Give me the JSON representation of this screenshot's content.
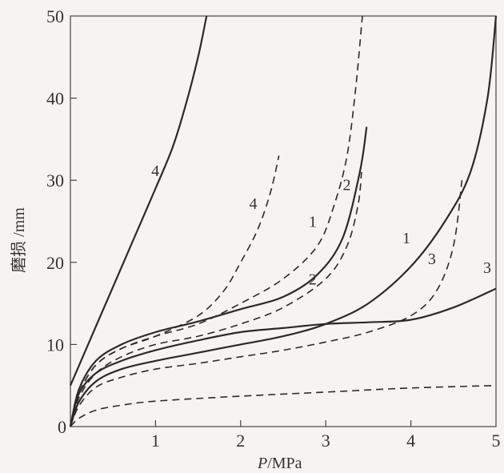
{
  "chart_data": {
    "type": "line",
    "xlabel_italic": "P",
    "xlabel_rest": "/MPa",
    "ylabel": "磨损 /mm",
    "xlim": [
      0,
      5
    ],
    "ylim": [
      0,
      50
    ],
    "x_ticks": [
      "0",
      "1",
      "2",
      "3",
      "4",
      "5"
    ],
    "y_ticks": [
      "10",
      "20",
      "30",
      "40",
      "50"
    ],
    "grid": false,
    "series": [
      {
        "name": "4",
        "style": "solid",
        "x": [
          0,
          0.25,
          0.5,
          0.75,
          1.0,
          1.2,
          1.35,
          1.5,
          1.6
        ],
        "y": [
          5,
          11,
          17,
          23,
          29,
          34,
          39,
          45,
          50
        ]
      },
      {
        "name": "4",
        "style": "dashed",
        "x": [
          0,
          0.1,
          0.3,
          0.6,
          1.0,
          1.5,
          1.8,
          2.0,
          2.2,
          2.35,
          2.45
        ],
        "y": [
          0,
          4,
          7.5,
          9.5,
          11,
          13.5,
          16.5,
          20,
          24,
          28.5,
          33
        ]
      },
      {
        "name": "1",
        "style": "dashed",
        "x": [
          0,
          0.1,
          0.3,
          0.6,
          1.0,
          1.5,
          2.0,
          2.5,
          2.9,
          3.1,
          3.25,
          3.35,
          3.43
        ],
        "y": [
          0,
          4,
          7.5,
          9.5,
          11,
          12.5,
          15,
          18,
          22,
          27,
          33,
          41,
          50
        ]
      },
      {
        "name": "2",
        "style": "solid",
        "x": [
          0,
          0.1,
          0.3,
          0.6,
          1.0,
          1.5,
          2.0,
          2.5,
          2.9,
          3.2,
          3.4,
          3.48
        ],
        "y": [
          0,
          4.5,
          8,
          10,
          11.5,
          12.8,
          14.3,
          15.8,
          18.5,
          23,
          31,
          36.5
        ]
      },
      {
        "name": "2",
        "style": "dashed",
        "x": [
          0,
          0.1,
          0.3,
          0.6,
          1.0,
          1.5,
          2.0,
          2.5,
          3.0,
          3.25,
          3.38,
          3.42
        ],
        "y": [
          0,
          3.5,
          6.5,
          8.5,
          10,
          11,
          12.5,
          14.5,
          18,
          22,
          27,
          31
        ]
      },
      {
        "name": "1",
        "style": "solid",
        "x": [
          0,
          0.1,
          0.3,
          0.6,
          1.0,
          1.5,
          2.0,
          2.5,
          3.0,
          3.5,
          4.0,
          4.4,
          4.7,
          4.9,
          5.0
        ],
        "y": [
          0,
          3,
          5.5,
          7,
          8,
          9,
          10,
          11,
          12.5,
          15,
          19.5,
          25,
          31,
          40,
          50
        ]
      },
      {
        "name": "3",
        "style": "solid",
        "x": [
          0,
          0.1,
          0.3,
          0.6,
          1.0,
          1.5,
          2.0,
          2.5,
          3.0,
          3.5,
          4.0,
          4.5,
          5.0
        ],
        "y": [
          0,
          4,
          6.5,
          8,
          9.3,
          10.5,
          11.5,
          12,
          12.5,
          12.7,
          13,
          14.5,
          16.8
        ]
      },
      {
        "name": "3",
        "style": "dashed",
        "x": [
          0,
          0.1,
          0.3,
          0.6,
          1.0,
          1.5,
          2.0,
          2.5,
          3.0,
          3.5,
          4.0,
          4.3,
          4.5,
          4.6
        ],
        "y": [
          0,
          2.5,
          4.8,
          6,
          7,
          7.7,
          8.5,
          9.3,
          10.3,
          11.5,
          13.5,
          16.5,
          22,
          30
        ]
      },
      {
        "name": "",
        "style": "dashed",
        "x": [
          0,
          0.1,
          0.3,
          0.6,
          1.0,
          2.0,
          3.0,
          4.0,
          5.0
        ],
        "y": [
          0,
          1,
          2,
          2.6,
          3.1,
          3.7,
          4.2,
          4.7,
          5
        ]
      }
    ],
    "curve_labels": [
      {
        "text": "4",
        "x": 0.95,
        "y": 30.5
      },
      {
        "text": "4",
        "x": 2.1,
        "y": 26.5
      },
      {
        "text": "1",
        "x": 2.8,
        "y": 24.3
      },
      {
        "text": "2",
        "x": 3.2,
        "y": 28.8
      },
      {
        "text": "2",
        "x": 2.8,
        "y": 17.3
      },
      {
        "text": "1",
        "x": 3.9,
        "y": 22.3
      },
      {
        "text": "3",
        "x": 4.2,
        "y": 19.8
      },
      {
        "text": "3",
        "x": 4.85,
        "y": 18.7
      }
    ]
  }
}
